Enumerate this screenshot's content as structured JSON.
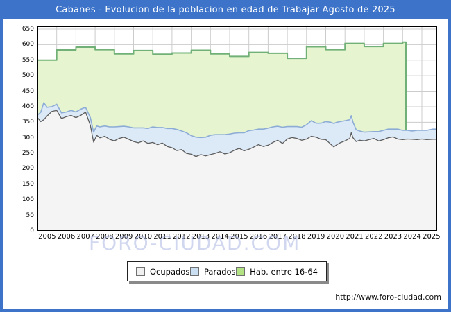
{
  "window": {
    "title": "Cabanes - Evolucion de la poblacion en edad de Trabajar Agosto de 2025"
  },
  "watermark": {
    "text": "FORO-CIUDAD.COM"
  },
  "footer": {
    "url": "http://www.foro-ciudad.com"
  },
  "colors": {
    "frame_blue": "#3d74c9",
    "title_text": "#ffffff",
    "grid": "#cccccc",
    "plot_border": "#000000",
    "hab_fill": "#e6f5cf",
    "hab_edge": "#71b177",
    "parados_fill": "#dce9f7",
    "parados_edge": "#8cacd6",
    "ocupados_fill": "#f4f4f4",
    "ocupados_edge": "#5c5c5c",
    "watermark_color": "rgba(172,182,226,0.55)",
    "legend_swatch_ocupados": "#f0f0f0",
    "legend_swatch_parados": "#cbdff2",
    "legend_swatch_hab": "#b2e283"
  },
  "chart_data": {
    "type": "area",
    "title": "Cabanes - Evolucion de la poblacion en edad de Trabajar Agosto de 2025",
    "subtitle": "",
    "grid": true,
    "legend_position": "bottom",
    "x_axis": {
      "label": "",
      "ticks": [
        "2005",
        "2006",
        "2007",
        "2008",
        "2009",
        "2010",
        "2011",
        "2012",
        "2013",
        "2014",
        "2015",
        "2016",
        "2017",
        "2018",
        "2019",
        "2020",
        "2021",
        "2022",
        "2023",
        "2024",
        "2025"
      ],
      "range": [
        2005,
        2025.8
      ]
    },
    "y_axis": {
      "label": "",
      "min": 0,
      "max": 650,
      "tick_step": 50,
      "ticks": [
        "0",
        "50",
        "100",
        "150",
        "200",
        "250",
        "300",
        "350",
        "400",
        "450",
        "500",
        "550",
        "600",
        "650"
      ]
    },
    "legend": [
      {
        "label": "Ocupados"
      },
      {
        "label": "Parados"
      },
      {
        "label": "Hab. entre 16-64"
      }
    ],
    "x": [
      2005.0,
      2005.17,
      2005.33,
      2005.5,
      2005.75,
      2006.0,
      2006.25,
      2006.5,
      2006.75,
      2007.0,
      2007.25,
      2007.5,
      2007.75,
      2007.92,
      2008.08,
      2008.25,
      2008.5,
      2008.75,
      2009.0,
      2009.25,
      2009.5,
      2009.75,
      2010.0,
      2010.25,
      2010.5,
      2010.75,
      2011.0,
      2011.25,
      2011.5,
      2011.75,
      2012.0,
      2012.25,
      2012.5,
      2012.75,
      2013.0,
      2013.25,
      2013.5,
      2013.75,
      2014.0,
      2014.25,
      2014.5,
      2014.75,
      2015.0,
      2015.25,
      2015.5,
      2015.75,
      2016.0,
      2016.25,
      2016.5,
      2016.75,
      2017.0,
      2017.25,
      2017.5,
      2017.75,
      2018.0,
      2018.25,
      2018.5,
      2018.75,
      2019.0,
      2019.25,
      2019.5,
      2019.75,
      2020.0,
      2020.25,
      2020.42,
      2020.58,
      2020.75,
      2021.0,
      2021.25,
      2021.33,
      2021.42,
      2021.58,
      2021.75,
      2022.0,
      2022.25,
      2022.5,
      2022.75,
      2023.0,
      2023.25,
      2023.5,
      2023.75,
      2024.0,
      2024.25,
      2024.5,
      2024.75,
      2025.0,
      2025.25,
      2025.58
    ],
    "series": [
      {
        "name": "Ocupados",
        "render": "area",
        "values": [
          365,
          352,
          358,
          370,
          385,
          388,
          362,
          368,
          372,
          365,
          372,
          383,
          340,
          286,
          308,
          300,
          305,
          295,
          290,
          298,
          302,
          295,
          288,
          284,
          290,
          282,
          285,
          278,
          283,
          272,
          268,
          259,
          262,
          250,
          247,
          240,
          246,
          242,
          246,
          250,
          255,
          248,
          252,
          260,
          266,
          258,
          263,
          270,
          278,
          272,
          276,
          285,
          292,
          282,
          296,
          301,
          298,
          292,
          296,
          305,
          302,
          295,
          294,
          280,
          271,
          278,
          284,
          290,
          298,
          316,
          300,
          288,
          292,
          290,
          294,
          298,
          290,
          294,
          300,
          303,
          296,
          294,
          296,
          295,
          294,
          296,
          294,
          295
        ]
      },
      {
        "name": "Parados",
        "render": "stacked-area",
        "stacked_on": "Ocupados",
        "values": [
          8,
          30,
          55,
          28,
          15,
          20,
          18,
          15,
          16,
          18,
          20,
          15,
          25,
          32,
          30,
          35,
          33,
          40,
          45,
          38,
          35,
          40,
          44,
          48,
          42,
          48,
          50,
          55,
          50,
          58,
          62,
          68,
          60,
          66,
          60,
          62,
          55,
          60,
          62,
          60,
          55,
          62,
          60,
          55,
          50,
          58,
          60,
          55,
          50,
          56,
          55,
          50,
          45,
          52,
          40,
          35,
          38,
          42,
          46,
          50,
          45,
          52,
          58,
          70,
          75,
          72,
          68,
          65,
          60,
          55,
          50,
          38,
          30,
          28,
          25,
          22,
          30,
          30,
          28,
          25,
          32,
          30,
          28,
          27,
          30,
          28,
          30,
          33
        ]
      },
      {
        "name": "Hab. entre 16-64",
        "render": "step-area",
        "end_x": 2024.17,
        "yearly_points": [
          [
            2005,
            550
          ],
          [
            2006,
            583
          ],
          [
            2007,
            592
          ],
          [
            2008,
            584
          ],
          [
            2009,
            570
          ],
          [
            2010,
            581
          ],
          [
            2011,
            569
          ],
          [
            2012,
            573
          ],
          [
            2013,
            582
          ],
          [
            2014,
            570
          ],
          [
            2015,
            562
          ],
          [
            2016,
            575
          ],
          [
            2017,
            572
          ],
          [
            2018,
            556
          ],
          [
            2019,
            593
          ],
          [
            2020,
            584
          ],
          [
            2021,
            604
          ],
          [
            2022,
            594
          ],
          [
            2023,
            604
          ],
          [
            2024,
            608
          ]
        ]
      }
    ]
  }
}
